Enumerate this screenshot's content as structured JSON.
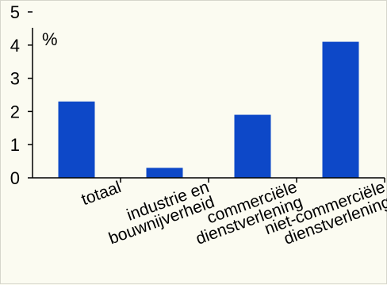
{
  "chart_data": {
    "type": "bar",
    "categories": [
      [
        "totaal"
      ],
      [
        "industrie en",
        "bouwnijverheid"
      ],
      [
        "commerciële",
        "dienstverlening"
      ],
      [
        "niet-commerciële",
        "dienstverlening"
      ]
    ],
    "values": [
      2.3,
      0.3,
      1.9,
      4.1
    ],
    "ylim": [
      0,
      5
    ],
    "yticks": [
      "0",
      "1",
      "2",
      "3",
      "4",
      "5"
    ],
    "unit_label": "%",
    "bar_color": "#0d48c8",
    "grid": false
  }
}
